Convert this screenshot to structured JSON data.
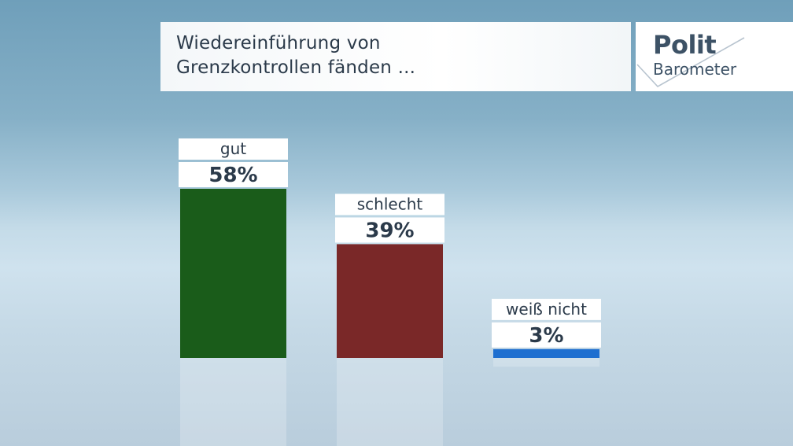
{
  "header": {
    "title_line1": "Wiedereinführung von",
    "title_line2": "Grenzkontrollen fänden ...",
    "logo_polit": "Polit",
    "logo_barometer": "Barometer"
  },
  "chart_data": {
    "type": "bar",
    "categories": [
      "gut",
      "schlecht",
      "weiß nicht"
    ],
    "values": [
      58,
      39,
      3
    ],
    "value_labels": [
      "58%",
      "39%",
      "3%"
    ],
    "colors": [
      "#1a5c1a",
      "#7a2828",
      "#1e6fd0"
    ],
    "ylim": [
      0,
      58
    ],
    "grid": false,
    "legend": "none"
  }
}
